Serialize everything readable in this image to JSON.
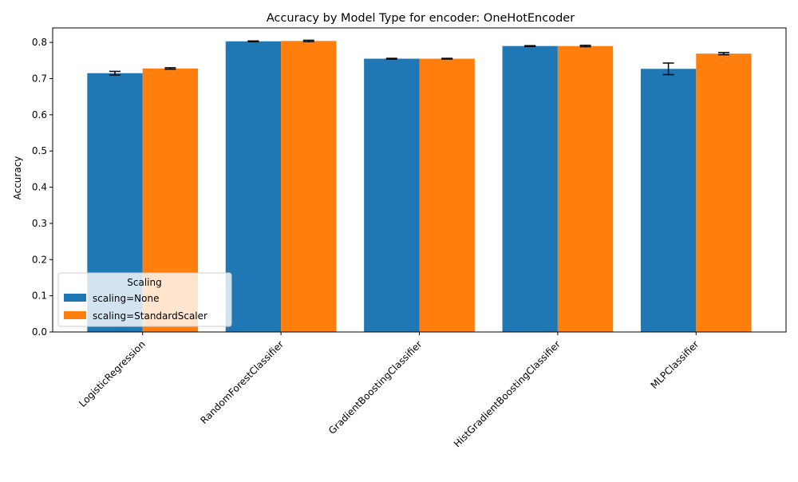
{
  "chart_data": {
    "type": "bar",
    "title": "Accuracy by Model Type for encoder: OneHotEncoder",
    "xlabel": "",
    "ylabel": "Accuracy",
    "ylim": [
      0,
      0.84
    ],
    "yticks": [
      "0.0",
      "0.1",
      "0.2",
      "0.3",
      "0.4",
      "0.5",
      "0.6",
      "0.7",
      "0.8"
    ],
    "categories": [
      "LogisticRegression",
      "RandomForestClassifier",
      "GradientBoostingClassifier",
      "HistGradientBoostingClassifier",
      "MLPClassifier"
    ],
    "series": [
      {
        "name": "scaling=None",
        "color": "#1f77b4",
        "values": [
          0.715,
          0.803,
          0.755,
          0.79,
          0.727
        ],
        "errors": [
          0.005,
          0.001,
          0.001,
          0.001,
          0.016
        ]
      },
      {
        "name": "scaling=StandardScaler",
        "color": "#ff7f0e",
        "values": [
          0.728,
          0.804,
          0.755,
          0.79,
          0.769
        ],
        "errors": [
          0.002,
          0.002,
          0.001,
          0.002,
          0.003
        ]
      }
    ],
    "legend": {
      "title": "Scaling",
      "placement": "lower-left"
    },
    "grid": false
  }
}
